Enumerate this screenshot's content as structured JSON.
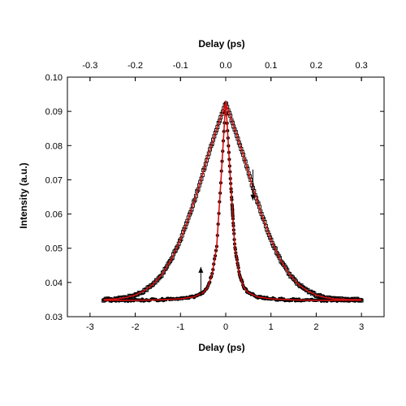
{
  "chart_data": {
    "type": "scatter",
    "xlabel": "Delay (ps)",
    "x2label": "Delay (ps)",
    "ylabel": "Intensity (a.u.)",
    "xlim": [
      -3.5,
      3.5
    ],
    "x2lim": [
      -0.35,
      0.35
    ],
    "ylim": [
      0.03,
      0.1
    ],
    "xticks": [
      -3,
      -2,
      -1,
      0,
      1,
      2,
      3
    ],
    "x2ticks": [
      -0.3,
      -0.2,
      -0.1,
      0.0,
      0.1,
      0.2,
      0.3
    ],
    "x2ticklabels": [
      "-0.3",
      "-0.2",
      "-0.1",
      "0.0",
      "0.1",
      "0.2",
      "0.3"
    ],
    "yticks": [
      0.03,
      0.04,
      0.05,
      0.06,
      0.07,
      0.08,
      0.09,
      0.1
    ],
    "yticklabels": [
      "0.03",
      "0.04",
      "0.05",
      "0.06",
      "0.07",
      "0.08",
      "0.09",
      "0.10"
    ],
    "grid": false,
    "series": [
      {
        "axis": "bottom",
        "marker": "open-square",
        "x": [
          -2.7,
          -2.4,
          -2.2,
          -2.0,
          -1.8,
          -1.6,
          -1.4,
          -1.2,
          -1.0,
          -0.8,
          -0.6,
          -0.4,
          -0.2,
          0.0,
          0.2,
          0.4,
          0.6,
          0.8,
          1.0,
          1.2,
          1.4,
          1.6,
          1.8,
          2.0,
          2.2,
          2.4,
          2.7,
          3.0
        ],
        "values": [
          0.035,
          0.0352,
          0.0356,
          0.0363,
          0.0376,
          0.0395,
          0.0425,
          0.0468,
          0.0525,
          0.0596,
          0.0677,
          0.0767,
          0.0848,
          0.0925,
          0.0848,
          0.0767,
          0.0677,
          0.0596,
          0.0525,
          0.0468,
          0.0425,
          0.0395,
          0.0376,
          0.0363,
          0.0356,
          0.0352,
          0.035,
          0.035
        ]
      },
      {
        "axis": "top",
        "marker": "filled-circle",
        "x": [
          -0.27,
          -0.2,
          -0.15,
          -0.1,
          -0.07,
          -0.05,
          -0.04,
          -0.03,
          -0.02,
          -0.01,
          0.0,
          0.01,
          0.02,
          0.03,
          0.04,
          0.05,
          0.07,
          0.1,
          0.15,
          0.2,
          0.3
        ],
        "values": [
          0.0348,
          0.0348,
          0.0349,
          0.0352,
          0.0358,
          0.037,
          0.0385,
          0.0425,
          0.0505,
          0.071,
          0.093,
          0.071,
          0.0505,
          0.0425,
          0.0385,
          0.037,
          0.0358,
          0.0352,
          0.0349,
          0.0348,
          0.0348
        ]
      }
    ],
    "annotations": [
      {
        "type": "arrow",
        "direction": "down",
        "x": 0.6,
        "y_from": 0.073,
        "y_to": 0.064
      },
      {
        "type": "arrow",
        "direction": "up",
        "x": -0.55,
        "y_from": 0.036,
        "y_to": 0.0445
      }
    ],
    "colors": {
      "data": "#000000",
      "fit": "#d41010",
      "axis": "#000000"
    }
  }
}
